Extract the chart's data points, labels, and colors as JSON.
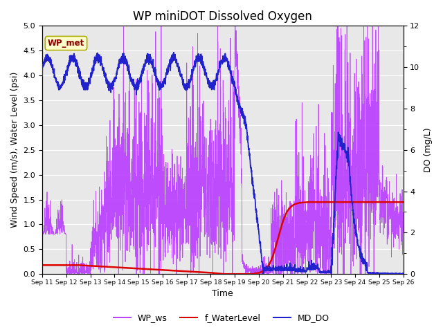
{
  "title": "WP miniDOT Dissolved Oxygen",
  "xlabel": "Time",
  "ylabel_left": "Wind Speed (m/s), Water Level (psi)",
  "ylabel_right": "DO (mg/L)",
  "ylim_left": [
    0.0,
    5.0
  ],
  "ylim_right": [
    0,
    12
  ],
  "yticks_left": [
    0.0,
    0.5,
    1.0,
    1.5,
    2.0,
    2.5,
    3.0,
    3.5,
    4.0,
    4.5,
    5.0
  ],
  "yticks_right": [
    0,
    2,
    4,
    6,
    8,
    10,
    12
  ],
  "xtick_labels": [
    "Sep 11",
    "Sep 12",
    "Sep 13",
    "Sep 14",
    "Sep 15",
    "Sep 16",
    "Sep 17",
    "Sep 18",
    "Sep 19",
    "Sep 20",
    "Sep 21",
    "Sep 22",
    "Sep 23",
    "Sep 24",
    "Sep 25",
    "Sep 26"
  ],
  "color_ws": "#BB44FF",
  "color_wl": "#DD0000",
  "color_do": "#2222CC",
  "legend_entries": [
    "WP_ws",
    "f_WaterLevel",
    "MD_DO"
  ],
  "annotation_text": "WP_met",
  "annotation_color": "#880000",
  "annotation_bg": "#FFFFCC",
  "background_color": "#E8E8E8",
  "title_fontsize": 12,
  "axis_fontsize": 9
}
